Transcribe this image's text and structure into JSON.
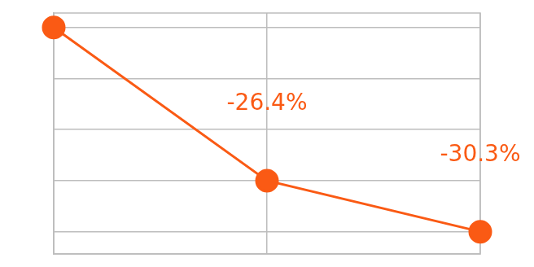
{
  "chart_data": {
    "type": "line",
    "categories": [
      null,
      null,
      null
    ],
    "values": [
      -14.7,
      -26.4,
      -30.3
    ],
    "value_labels": [
      null,
      "-26.4%",
      "-30.3%"
    ],
    "color": "#fa5a14",
    "marker": "circle",
    "line_style": "solid",
    "ylim": [
      -32.0,
      -13.6
    ],
    "yticks": [
      -30.3,
      -26.4,
      -22.5,
      -18.6,
      -14.7
    ],
    "grid": true,
    "tick_labels": false,
    "data_labels": true
  }
}
